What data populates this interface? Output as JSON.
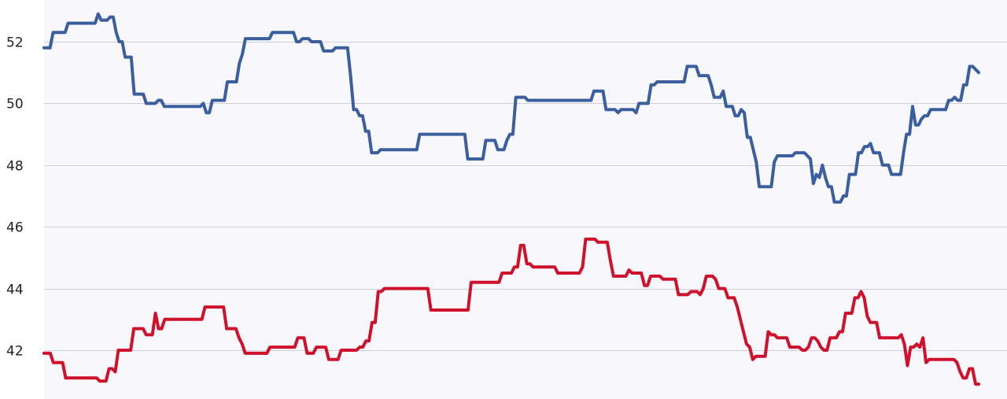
{
  "chart_data": {
    "type": "line",
    "title": "",
    "xlabel": "",
    "ylabel": "",
    "ylim": [
      40.8,
      53.2
    ],
    "ytick_values": [
      42,
      44,
      46,
      48,
      50,
      52
    ],
    "ytick_labels": [
      "42",
      "44",
      "46",
      "48",
      "50",
      "52"
    ],
    "grid": true,
    "colors": {
      "plot_background": "#f8f8fc",
      "grid": "#cfcfd8",
      "series_1": "#3b5f9e",
      "series_2": "#d0112b"
    },
    "series": [
      {
        "values": [
          51.8,
          51.8,
          51.8,
          52.3,
          52.3,
          52.3,
          52.3,
          52.3,
          52.6,
          52.6,
          52.6,
          52.6,
          52.6,
          52.6,
          52.6,
          52.6,
          52.6,
          52.6,
          52.9,
          52.7,
          52.7,
          52.7,
          52.8,
          52.8,
          52.3,
          52.0,
          52.0,
          51.5,
          51.5,
          51.5,
          50.3,
          50.3,
          50.3,
          50.3,
          50.0,
          50.0,
          50.0,
          50.0,
          50.1,
          50.1,
          49.9,
          49.9,
          49.9,
          49.9,
          49.9,
          49.9,
          49.9,
          49.9,
          49.9,
          49.9,
          49.9,
          49.9,
          49.9,
          50.0,
          49.7,
          49.7,
          50.1,
          50.1,
          50.1,
          50.1,
          50.1,
          50.7,
          50.7,
          50.7,
          50.7,
          51.3,
          51.6,
          52.1,
          52.1,
          52.1,
          52.1,
          52.1,
          52.1,
          52.1,
          52.1,
          52.1,
          52.3,
          52.3,
          52.3,
          52.3,
          52.3,
          52.3,
          52.3,
          52.3,
          52.0,
          52.0,
          52.1,
          52.1,
          52.1,
          52.0,
          52.0,
          52.0,
          52.0,
          51.7,
          51.7,
          51.7,
          51.7,
          51.8,
          51.8,
          51.8,
          51.8,
          51.8,
          50.9,
          49.8,
          49.8,
          49.6,
          49.6,
          49.1,
          49.1,
          48.4,
          48.4,
          48.4,
          48.5,
          48.5,
          48.5,
          48.5,
          48.5,
          48.5,
          48.5,
          48.5,
          48.5,
          48.5,
          48.5,
          48.5,
          48.5,
          49.0,
          49.0,
          49.0,
          49.0,
          49.0,
          49.0,
          49.0,
          49.0,
          49.0,
          49.0,
          49.0,
          49.0,
          49.0,
          49.0,
          49.0,
          49.0,
          48.2,
          48.2,
          48.2,
          48.2,
          48.2,
          48.2,
          48.8,
          48.8,
          48.8,
          48.8,
          48.5,
          48.5,
          48.5,
          48.8,
          49.0,
          49.0,
          50.2,
          50.2,
          50.2,
          50.2,
          50.1,
          50.1,
          50.1,
          50.1,
          50.1,
          50.1,
          50.1,
          50.1,
          50.1,
          50.1,
          50.1,
          50.1,
          50.1,
          50.1,
          50.1,
          50.1,
          50.1,
          50.1,
          50.1,
          50.1,
          50.1,
          50.1,
          50.4,
          50.4,
          50.4,
          50.4,
          49.8,
          49.8,
          49.8,
          49.8,
          49.7,
          49.8,
          49.8,
          49.8,
          49.8,
          49.8,
          49.7,
          50.0,
          50.0,
          50.0,
          50.0,
          50.6,
          50.6,
          50.7,
          50.7,
          50.7,
          50.7,
          50.7,
          50.7,
          50.7,
          50.7,
          50.7,
          50.7,
          51.2,
          51.2,
          51.2,
          51.2,
          50.9,
          50.9,
          50.9,
          50.9,
          50.6,
          50.2,
          50.2,
          50.2,
          50.4,
          49.9,
          49.9,
          49.9,
          49.6,
          49.6,
          49.8,
          49.7,
          48.9,
          48.9,
          48.5,
          48.1,
          47.3,
          47.3,
          47.3,
          47.3,
          47.3,
          48.1,
          48.3,
          48.3,
          48.3,
          48.3,
          48.3,
          48.3,
          48.4,
          48.4,
          48.4,
          48.4,
          48.3,
          48.2,
          47.4,
          47.7,
          47.6,
          48.0,
          47.6,
          47.3,
          47.3,
          46.8,
          46.8,
          46.8,
          47.0,
          47.0,
          47.7,
          47.7,
          47.7,
          48.4,
          48.4,
          48.6,
          48.6,
          48.7,
          48.4,
          48.4,
          48.4,
          48.0,
          48.0,
          48.0,
          47.7,
          47.7,
          47.7,
          47.7,
          48.4,
          49.0,
          49.0,
          49.9,
          49.3,
          49.3,
          49.5,
          49.6,
          49.6,
          49.8,
          49.8,
          49.8,
          49.8,
          49.8,
          49.8,
          50.1,
          50.1,
          50.2,
          50.1,
          50.1,
          50.6,
          50.6,
          51.2,
          51.2,
          51.1,
          51.0
        ]
      },
      {
        "values": [
          41.9,
          41.9,
          41.9,
          41.6,
          41.6,
          41.6,
          41.6,
          41.1,
          41.1,
          41.1,
          41.1,
          41.1,
          41.1,
          41.1,
          41.1,
          41.1,
          41.1,
          41.1,
          41.0,
          41.0,
          41.0,
          41.4,
          41.4,
          41.3,
          42.0,
          42.0,
          42.0,
          42.0,
          42.0,
          42.7,
          42.7,
          42.7,
          42.7,
          42.5,
          42.5,
          42.5,
          43.2,
          42.7,
          42.7,
          43.0,
          43.0,
          43.0,
          43.0,
          43.0,
          43.0,
          43.0,
          43.0,
          43.0,
          43.0,
          43.0,
          43.0,
          43.0,
          43.4,
          43.4,
          43.4,
          43.4,
          43.4,
          43.4,
          43.4,
          42.7,
          42.7,
          42.7,
          42.7,
          42.4,
          42.2,
          41.9,
          41.9,
          41.9,
          41.9,
          41.9,
          41.9,
          41.9,
          41.9,
          42.1,
          42.1,
          42.1,
          42.1,
          42.1,
          42.1,
          42.1,
          42.1,
          42.1,
          42.4,
          42.4,
          42.4,
          41.9,
          41.9,
          41.9,
          42.1,
          42.1,
          42.1,
          42.1,
          41.7,
          41.7,
          41.7,
          41.7,
          42.0,
          42.0,
          42.0,
          42.0,
          42.0,
          42.0,
          42.1,
          42.1,
          42.3,
          42.3,
          42.9,
          42.9,
          43.9,
          43.9,
          44.0,
          44.0,
          44.0,
          44.0,
          44.0,
          44.0,
          44.0,
          44.0,
          44.0,
          44.0,
          44.0,
          44.0,
          44.0,
          44.0,
          44.0,
          43.3,
          43.3,
          43.3,
          43.3,
          43.3,
          43.3,
          43.3,
          43.3,
          43.3,
          43.3,
          43.3,
          43.3,
          43.3,
          44.2,
          44.2,
          44.2,
          44.2,
          44.2,
          44.2,
          44.2,
          44.2,
          44.2,
          44.2,
          44.5,
          44.5,
          44.5,
          44.5,
          44.7,
          44.7,
          45.4,
          45.4,
          44.8,
          44.8,
          44.7,
          44.7,
          44.7,
          44.7,
          44.7,
          44.7,
          44.7,
          44.7,
          44.5,
          44.5,
          44.5,
          44.5,
          44.5,
          44.5,
          44.5,
          44.5,
          44.7,
          45.6,
          45.6,
          45.6,
          45.6,
          45.5,
          45.5,
          45.5,
          45.5,
          44.9,
          44.4,
          44.4,
          44.4,
          44.4,
          44.4,
          44.6,
          44.5,
          44.5,
          44.5,
          44.5,
          44.1,
          44.1,
          44.4,
          44.4,
          44.4,
          44.4,
          44.3,
          44.3,
          44.3,
          44.3,
          44.3,
          43.8,
          43.8,
          43.8,
          43.8,
          43.9,
          43.9,
          43.9,
          43.8,
          44.0,
          44.4,
          44.4,
          44.4,
          44.3,
          44.0,
          44.0,
          44.0,
          43.7,
          43.7,
          43.7,
          43.4,
          43.0,
          42.6,
          42.2,
          42.1,
          41.7,
          41.8,
          41.8,
          41.8,
          41.8,
          42.6,
          42.5,
          42.5,
          42.4,
          42.4,
          42.4,
          42.4,
          42.1,
          42.1,
          42.1,
          42.1,
          42.0,
          42.0,
          42.1,
          42.4,
          42.4,
          42.3,
          42.1,
          42.0,
          42.0,
          42.4,
          42.4,
          42.4,
          42.6,
          42.6,
          43.2,
          43.2,
          43.2,
          43.7,
          43.7,
          43.9,
          43.7,
          43.1,
          42.9,
          42.9,
          42.9,
          42.4,
          42.4,
          42.4,
          42.4,
          42.4,
          42.4,
          42.4,
          42.5,
          42.2,
          41.5,
          42.1,
          42.1,
          42.2,
          42.1,
          42.4,
          41.6,
          41.7,
          41.7,
          41.7,
          41.7,
          41.7,
          41.7,
          41.7,
          41.7,
          41.7,
          41.6,
          41.3,
          41.1,
          41.1,
          41.4,
          41.4,
          40.9,
          40.9
        ]
      }
    ]
  }
}
